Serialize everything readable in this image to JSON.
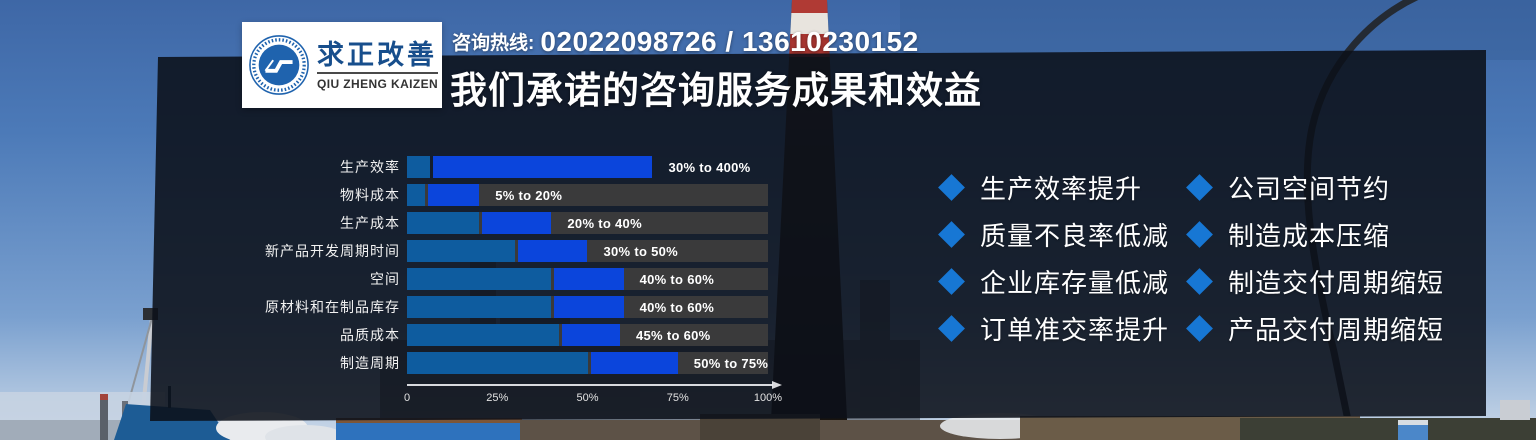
{
  "brand": {
    "logo_cn": "求正改善",
    "logo_en": "QIU ZHENG KAIZEN",
    "hotline_label": "咨询热线:",
    "hotline_numbers": "02022098726 / 13610230152",
    "title": "我们承诺的咨询服务成果和效益"
  },
  "colors": {
    "bar_min_segment": "#0e5c9f",
    "bar_range_segment": "#0b45dc",
    "bar_track": "#3a3a3b",
    "diamond_accent": "#1777d4",
    "panel": "rgba(11,16,25,0.88)",
    "logo_blue": "#174e8c"
  },
  "chart_data": {
    "type": "bar",
    "orientation": "horizontal",
    "title": "",
    "xlabel": "",
    "ylabel": "",
    "xlim": [
      0,
      100
    ],
    "x_ticks": [
      "0",
      "25%",
      "50%",
      "75%",
      "100%"
    ],
    "legend": null,
    "grid": false,
    "categories": [
      "生产效率",
      "物料成本",
      "生产成本",
      "新产品开发周期时间",
      "空间",
      "原材料和在制品库存",
      "品质成本",
      "制造周期"
    ],
    "series": [
      {
        "name": "improvement_min_pct",
        "values": [
          30,
          5,
          20,
          30,
          40,
          40,
          45,
          50
        ]
      },
      {
        "name": "improvement_max_pct",
        "values": [
          400,
          20,
          40,
          50,
          60,
          60,
          60,
          75
        ]
      }
    ],
    "rows": [
      {
        "label": "生产效率",
        "range": "30% to 400%",
        "from": 30,
        "to": 400,
        "draw_from_pct": 6.5,
        "draw_to_pct": 68,
        "track": false
      },
      {
        "label": "物料成本",
        "range": "5% to 20%",
        "from": 5,
        "to": 20,
        "draw_from_pct": 5,
        "draw_to_pct": 20,
        "track": true
      },
      {
        "label": "生产成本",
        "range": "20% to 40%",
        "from": 20,
        "to": 40,
        "draw_from_pct": 20,
        "draw_to_pct": 40,
        "track": true
      },
      {
        "label": "新产品开发周期时间",
        "range": "30% to 50%",
        "from": 30,
        "to": 50,
        "draw_from_pct": 30,
        "draw_to_pct": 50,
        "track": true
      },
      {
        "label": "空间",
        "range": "40% to 60%",
        "from": 40,
        "to": 60,
        "draw_from_pct": 40,
        "draw_to_pct": 60,
        "track": true
      },
      {
        "label": "原材料和在制品库存",
        "range": "40% to 60%",
        "from": 40,
        "to": 60,
        "draw_from_pct": 40,
        "draw_to_pct": 60,
        "track": true
      },
      {
        "label": "品质成本",
        "range": "45% to 60%",
        "from": 45,
        "to": 60,
        "draw_from_pct": 42,
        "draw_to_pct": 59,
        "track": true
      },
      {
        "label": "制造周期",
        "range": "50% to 75%",
        "from": 50,
        "to": 75,
        "draw_from_pct": 50,
        "draw_to_pct": 75,
        "track": true
      }
    ]
  },
  "benefits": {
    "left": [
      "生产效率提升",
      "质量不良率低减",
      "企业库存量低减",
      "订单准交率提升"
    ],
    "right": [
      "公司空间节约",
      "制造成本压缩",
      "制造交付周期缩短",
      "产品交付周期缩短"
    ]
  }
}
